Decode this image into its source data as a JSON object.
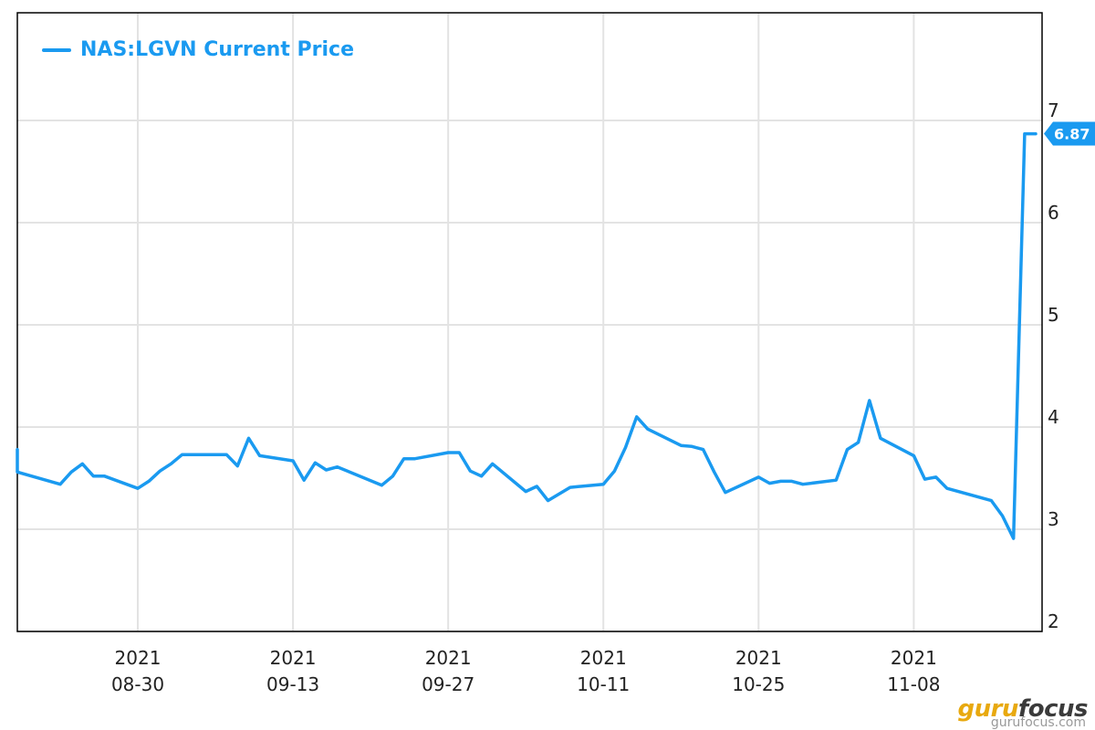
{
  "chart_data": {
    "type": "line",
    "series": [
      {
        "name": "NAS:LGVN Current Price",
        "color": "#1a9af0",
        "points": [
          [
            "2021-08-18",
            3.78
          ],
          [
            "2021-08-19",
            3.56
          ],
          [
            "2021-08-23",
            3.44
          ],
          [
            "2021-08-24",
            3.56
          ],
          [
            "2021-08-25",
            3.64
          ],
          [
            "2021-08-26",
            3.52
          ],
          [
            "2021-08-27",
            3.52
          ],
          [
            "2021-08-30",
            3.4
          ],
          [
            "2021-08-31",
            3.47
          ],
          [
            "2021-09-01",
            3.57
          ],
          [
            "2021-09-02",
            3.64
          ],
          [
            "2021-09-03",
            3.73
          ],
          [
            "2021-09-07",
            3.73
          ],
          [
            "2021-09-08",
            3.62
          ],
          [
            "2021-09-09",
            3.89
          ],
          [
            "2021-09-10",
            3.72
          ],
          [
            "2021-09-13",
            3.67
          ],
          [
            "2021-09-14",
            3.48
          ],
          [
            "2021-09-15",
            3.65
          ],
          [
            "2021-09-16",
            3.58
          ],
          [
            "2021-09-17",
            3.61
          ],
          [
            "2021-09-21",
            3.43
          ],
          [
            "2021-09-22",
            3.52
          ],
          [
            "2021-09-23",
            3.69
          ],
          [
            "2021-09-24",
            3.69
          ],
          [
            "2021-09-27",
            3.75
          ],
          [
            "2021-09-28",
            3.75
          ],
          [
            "2021-09-29",
            3.57
          ],
          [
            "2021-09-30",
            3.52
          ],
          [
            "2021-10-01",
            3.64
          ],
          [
            "2021-10-04",
            3.37
          ],
          [
            "2021-10-05",
            3.42
          ],
          [
            "2021-10-06",
            3.28
          ],
          [
            "2021-10-08",
            3.41
          ],
          [
            "2021-10-11",
            3.44
          ],
          [
            "2021-10-12",
            3.57
          ],
          [
            "2021-10-13",
            3.8
          ],
          [
            "2021-10-14",
            4.1
          ],
          [
            "2021-10-15",
            3.98
          ],
          [
            "2021-10-18",
            3.82
          ],
          [
            "2021-10-19",
            3.81
          ],
          [
            "2021-10-20",
            3.78
          ],
          [
            "2021-10-21",
            3.56
          ],
          [
            "2021-10-22",
            3.36
          ],
          [
            "2021-10-25",
            3.51
          ],
          [
            "2021-10-26",
            3.45
          ],
          [
            "2021-10-27",
            3.47
          ],
          [
            "2021-10-28",
            3.47
          ],
          [
            "2021-10-29",
            3.44
          ],
          [
            "2021-11-01",
            3.48
          ],
          [
            "2021-11-02",
            3.78
          ],
          [
            "2021-11-03",
            3.85
          ],
          [
            "2021-11-04",
            4.26
          ],
          [
            "2021-11-05",
            3.89
          ],
          [
            "2021-11-08",
            3.72
          ],
          [
            "2021-11-09",
            3.49
          ],
          [
            "2021-11-10",
            3.51
          ],
          [
            "2021-11-11",
            3.4
          ],
          [
            "2021-11-15",
            3.28
          ],
          [
            "2021-11-16",
            3.13
          ],
          [
            "2021-11-17",
            2.91
          ],
          [
            "2021-11-18",
            6.87
          ],
          [
            "2021-11-19",
            6.87
          ]
        ]
      }
    ],
    "x_range": [
      "2021-08-19",
      "2021-11-19"
    ],
    "x_ticks": [
      {
        "date": "2021-08-30",
        "year": "2021",
        "label": "08-30"
      },
      {
        "date": "2021-09-13",
        "year": "2021",
        "label": "09-13"
      },
      {
        "date": "2021-09-27",
        "year": "2021",
        "label": "09-27"
      },
      {
        "date": "2021-10-11",
        "year": "2021",
        "label": "10-11"
      },
      {
        "date": "2021-10-25",
        "year": "2021",
        "label": "10-25"
      },
      {
        "date": "2021-11-08",
        "year": "2021",
        "label": "11-08"
      }
    ],
    "y_ticks": [
      2,
      3,
      4,
      5,
      6,
      7
    ],
    "ylim": [
      2,
      8
    ],
    "grid": true,
    "y_axis_position": "right",
    "legend_position": "top-left",
    "last_value_label": "6.87"
  },
  "watermark": {
    "brand_part1": "guru",
    "brand_part2": "focus",
    "subtext": "gurufocus.com"
  }
}
